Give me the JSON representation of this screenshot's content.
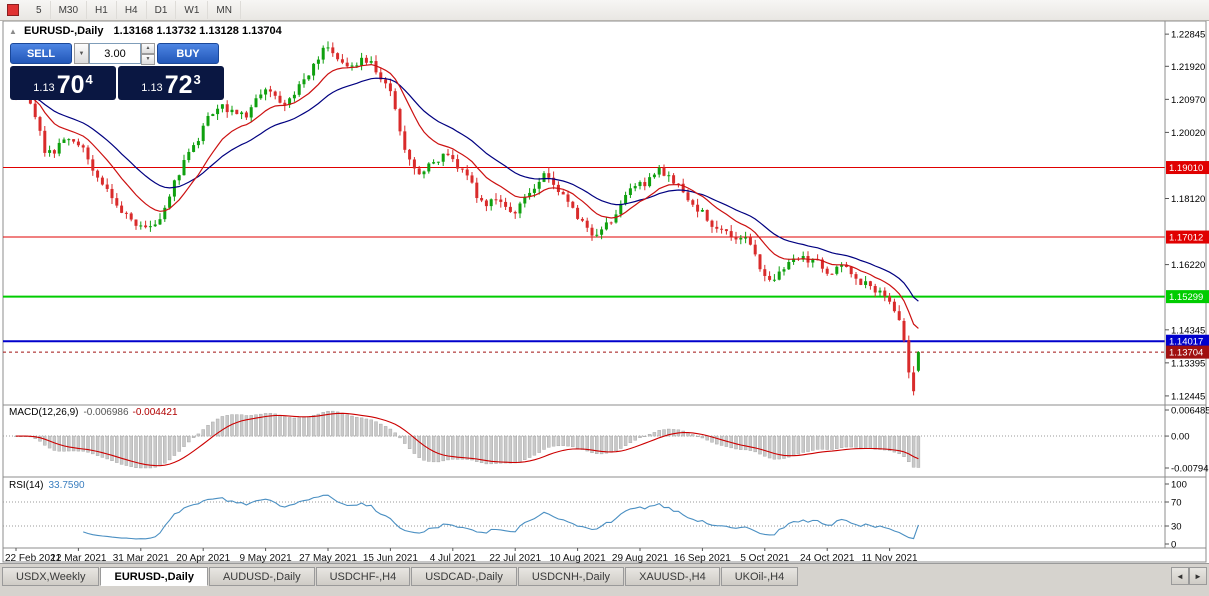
{
  "toolbar": {
    "timeframes": [
      "5",
      "M30",
      "H1",
      "H4",
      "D1",
      "W1",
      "MN"
    ]
  },
  "chart_header": {
    "collapse_icon": "▲",
    "symbol": "EURUSD-,Daily",
    "ohlc": "1.13168 1.13732 1.13128 1.13704"
  },
  "trade_panel": {
    "sell_label": "SELL",
    "buy_label": "BUY",
    "volume": "3.00",
    "sell_price": {
      "prefix": "1.13",
      "big": "70",
      "sup": "4"
    },
    "buy_price": {
      "prefix": "1.13",
      "big": "72",
      "sup": "3"
    }
  },
  "icons": {
    "dropdown": "▼",
    "spin_up": "▲",
    "spin_down": "▼",
    "scroll_left": "◄",
    "scroll_right": "►"
  },
  "indicators": {
    "macd": {
      "label": "MACD(12,26,9)",
      "value1": "-0.006986",
      "value2": "-0.004421",
      "axis_labels": [
        "0.006485",
        "0.00",
        "-0.007947"
      ]
    },
    "rsi": {
      "label": "RSI(14)",
      "value": "33.7590",
      "axis_labels": [
        "100",
        "70",
        "30",
        "0"
      ]
    }
  },
  "tabs": [
    "USDX,Weekly",
    "EURUSD-,Daily",
    "AUDUSD-,Daily",
    "USDCHF-,H4",
    "USDCAD-,Daily",
    "USDCNH-,Daily",
    "XAUUSD-,H4",
    "UKOil-,H4"
  ],
  "active_tab": "EURUSD-,Daily",
  "chart_data": {
    "type": "candlestick",
    "title": "EURUSD-,Daily",
    "symbol": "EURUSD",
    "timeframe": "Daily",
    "x_labels": [
      "22 Feb 2021",
      "12 Mar 2021",
      "31 Mar 2021",
      "20 Apr 2021",
      "9 May 2021",
      "27 May 2021",
      "15 Jun 2021",
      "4 Jul 2021",
      "22 Jul 2021",
      "10 Aug 2021",
      "29 Aug 2021",
      "16 Sep 2021",
      "5 Oct 2021",
      "24 Oct 2021",
      "11 Nov 2021"
    ],
    "label_every": 13,
    "num_candles": 189,
    "y_min": 1.1227,
    "y_max": 1.2305,
    "y_ticks": [
      "1.22845",
      "1.21920",
      "1.20970",
      "1.20020",
      "1.18120",
      "1.16220",
      "1.14345",
      "1.13395",
      "1.12445"
    ],
    "hlines": [
      {
        "price": 1.1901,
        "label": "1.19010",
        "color": "#e00000",
        "width": 1
      },
      {
        "price": 1.17012,
        "label": "1.17012",
        "color": "#e00000",
        "width": 1
      },
      {
        "price": 1.15299,
        "label": "1.15299",
        "color": "#00cc00",
        "width": 2
      },
      {
        "price": 1.14017,
        "label": "1.14017",
        "color": "#0000cc",
        "width": 2
      }
    ],
    "current_price": {
      "price": 1.13704,
      "label": "1.13704",
      "color": "#a01010"
    },
    "colors": {
      "up": "#0fa00f",
      "down": "#d92b2b",
      "ma_fast": "#cc1111",
      "ma_slow": "#000080",
      "rsi": "#4a8fc2",
      "macd_hist": "#c9c9c9",
      "macd_signal": "#cc0000"
    },
    "price_path": [
      [
        0,
        1.212
      ],
      [
        3,
        1.2065
      ],
      [
        6,
        1.1915
      ],
      [
        10,
        1.2
      ],
      [
        14,
        1.195
      ],
      [
        18,
        1.184
      ],
      [
        22,
        1.1765
      ],
      [
        26,
        1.1712
      ],
      [
        30,
        1.178
      ],
      [
        34,
        1.1905
      ],
      [
        39,
        1.2035
      ],
      [
        43,
        1.208
      ],
      [
        47,
        1.204
      ],
      [
        52,
        1.213
      ],
      [
        55,
        1.207
      ],
      [
        60,
        1.2165
      ],
      [
        64,
        1.2245
      ],
      [
        68,
        1.2195
      ],
      [
        72,
        1.2215
      ],
      [
        76,
        1.2165
      ],
      [
        78,
        1.212
      ],
      [
        80,
        1.1985
      ],
      [
        82,
        1.1895
      ],
      [
        84,
        1.1865
      ],
      [
        87,
        1.1925
      ],
      [
        89,
        1.195
      ],
      [
        91,
        1.1925
      ],
      [
        94,
        1.1845
      ],
      [
        97,
        1.179
      ],
      [
        100,
        1.1805
      ],
      [
        104,
        1.177
      ],
      [
        107,
        1.1855
      ],
      [
        109,
        1.189
      ],
      [
        112,
        1.186
      ],
      [
        115,
        1.178
      ],
      [
        117,
        1.173
      ],
      [
        121,
        1.17
      ],
      [
        125,
        1.179
      ],
      [
        129,
        1.1845
      ],
      [
        132,
        1.1872
      ],
      [
        134,
        1.1895
      ],
      [
        137,
        1.1855
      ],
      [
        140,
        1.1815
      ],
      [
        143,
        1.176
      ],
      [
        146,
        1.1735
      ],
      [
        149,
        1.1695
      ],
      [
        152,
        1.1688
      ],
      [
        155,
        1.1605
      ],
      [
        157,
        1.156
      ],
      [
        160,
        1.1622
      ],
      [
        163,
        1.1648
      ],
      [
        166,
        1.1628
      ],
      [
        169,
        1.161
      ],
      [
        172,
        1.1638
      ],
      [
        175,
        1.1582
      ],
      [
        178,
        1.1562
      ],
      [
        181,
        1.1522
      ],
      [
        183,
        1.1482
      ],
      [
        184,
        1.1465
      ]
    ],
    "final_candles": [
      [
        1.146,
        1.1468,
        1.1398,
        1.1405
      ],
      [
        1.1405,
        1.1418,
        1.1295,
        1.1312
      ],
      [
        1.1312,
        1.133,
        1.1246,
        1.1258
      ],
      [
        1.13168,
        1.13732,
        1.13128,
        1.13704
      ]
    ]
  }
}
